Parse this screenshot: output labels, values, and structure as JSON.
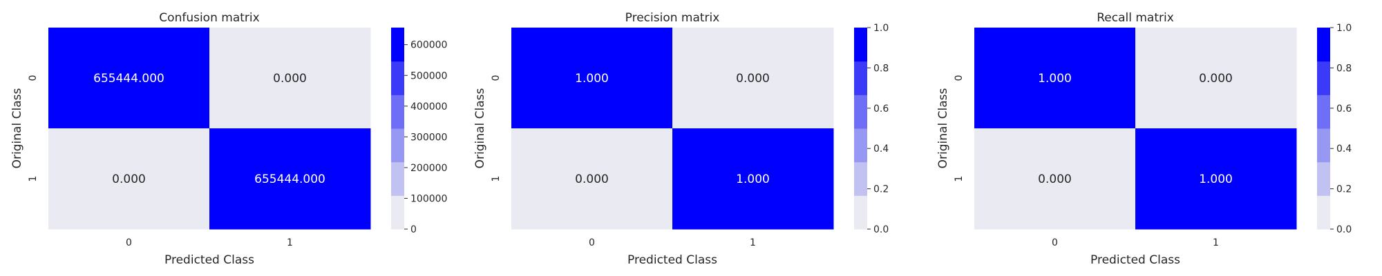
{
  "chart_data": [
    {
      "type": "heatmap",
      "title": "Confusion matrix",
      "xlabel": "Predicted Class",
      "ylabel": "Original Class",
      "x_ticks": [
        "0",
        "1"
      ],
      "y_ticks": [
        "0",
        "1"
      ],
      "values": [
        [
          655444.0,
          0.0
        ],
        [
          0.0,
          655444.0
        ]
      ],
      "cell_labels": [
        [
          "655444.000",
          "0.000"
        ],
        [
          "0.000",
          "655444.000"
        ]
      ],
      "colorbar": {
        "range": [
          0,
          655444
        ],
        "ticks": [
          0,
          100000,
          200000,
          300000,
          400000,
          500000,
          600000
        ],
        "tick_labels": [
          "0",
          "100000",
          "200000",
          "300000",
          "400000",
          "500000",
          "600000"
        ]
      }
    },
    {
      "type": "heatmap",
      "title": "Precision matrix",
      "xlabel": "Predicted Class",
      "ylabel": "Original Class",
      "x_ticks": [
        "0",
        "1"
      ],
      "y_ticks": [
        "0",
        "1"
      ],
      "values": [
        [
          1.0,
          0.0
        ],
        [
          0.0,
          1.0
        ]
      ],
      "cell_labels": [
        [
          "1.000",
          "0.000"
        ],
        [
          "0.000",
          "1.000"
        ]
      ],
      "colorbar": {
        "range": [
          0,
          1
        ],
        "ticks": [
          0,
          0.2,
          0.4,
          0.6,
          0.8,
          1.0
        ],
        "tick_labels": [
          "0.0",
          "0.2",
          "0.4",
          "0.6",
          "0.8",
          "1.0"
        ]
      }
    },
    {
      "type": "heatmap",
      "title": "Recall matrix",
      "xlabel": "Predicted Class",
      "ylabel": "Original Class",
      "x_ticks": [
        "0",
        "1"
      ],
      "y_ticks": [
        "0",
        "1"
      ],
      "values": [
        [
          1.0,
          0.0
        ],
        [
          0.0,
          1.0
        ]
      ],
      "cell_labels": [
        [
          "1.000",
          "0.000"
        ],
        [
          "0.000",
          "1.000"
        ]
      ],
      "colorbar": {
        "range": [
          0,
          1
        ],
        "ticks": [
          0,
          0.2,
          0.4,
          0.6,
          0.8,
          1.0
        ],
        "tick_labels": [
          "0.0",
          "0.2",
          "0.4",
          "0.6",
          "0.8",
          "1.0"
        ]
      }
    }
  ],
  "palette": [
    "#eaeaf2",
    "#c1c1f2",
    "#9797f4",
    "#6e6ef6",
    "#3a3af8",
    "#0000ff"
  ],
  "text_colors": {
    "on_dark": "#ffffff",
    "on_light": "#262626"
  }
}
